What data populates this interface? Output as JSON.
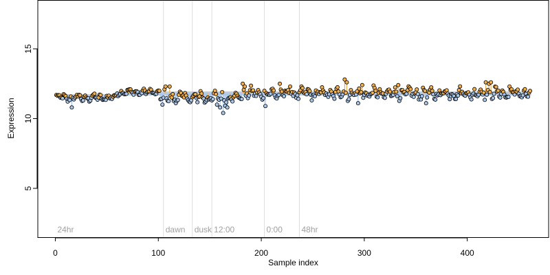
{
  "chart_data": {
    "type": "scatter",
    "xlabel": "Sample index",
    "ylabel": "Expression",
    "xlim": [
      -17,
      479
    ],
    "ylim": [
      1.5,
      18.5
    ],
    "x_ticks": [
      0,
      100,
      200,
      300,
      400
    ],
    "y_ticks": [
      5,
      10,
      15
    ],
    "grid": false,
    "phase_markers": [
      {
        "label": "24hr",
        "x": 0,
        "line": false
      },
      {
        "label": "dawn",
        "x": 105,
        "line": true
      },
      {
        "label": "dusk",
        "x": 133,
        "line": true
      },
      {
        "label": "12:00",
        "x": 152,
        "line": true
      },
      {
        "label": "0:00",
        "x": 203,
        "line": true
      },
      {
        "label": "48hr",
        "x": 237,
        "line": true
      }
    ],
    "baseline": {
      "x_start": 1,
      "x_end": 462,
      "levels": [
        {
          "x_start": 1,
          "x_end": 60,
          "y": 11.6
        },
        {
          "x_start": 60,
          "x_end": 462,
          "y": 11.8
        }
      ]
    },
    "segments": [
      {
        "x_start": 1,
        "x_end": 60,
        "y_center": 11.5,
        "y_amplitude": 0.3
      },
      {
        "x_start": 60,
        "x_end": 102,
        "y_center": 11.9,
        "y_amplitude": 0.25
      },
      {
        "x_start": 102,
        "x_end": 180,
        "y_center": 11.5,
        "y_amplitude": 0.5
      },
      {
        "x_start": 180,
        "x_end": 462,
        "y_center": 11.8,
        "y_amplitude": 0.45
      }
    ],
    "series": [
      {
        "name": "",
        "color": "#a9c6e8"
      },
      {
        "name": "",
        "color": "#f0b050"
      }
    ],
    "highlight_points": [
      {
        "x": 16,
        "y": 10.8,
        "series": 0
      },
      {
        "x": 104,
        "y": 11.0,
        "series": 0
      },
      {
        "x": 107,
        "y": 12.3,
        "series": 1
      },
      {
        "x": 111,
        "y": 12.3,
        "series": 1
      },
      {
        "x": 157,
        "y": 11.0,
        "series": 0
      },
      {
        "x": 160,
        "y": 10.8,
        "series": 0
      },
      {
        "x": 163,
        "y": 10.4,
        "series": 0
      },
      {
        "x": 167,
        "y": 10.8,
        "series": 0
      },
      {
        "x": 182,
        "y": 12.5,
        "series": 1
      },
      {
        "x": 184,
        "y": 12.3,
        "series": 1
      },
      {
        "x": 204,
        "y": 10.9,
        "series": 0
      },
      {
        "x": 218,
        "y": 12.5,
        "series": 1
      },
      {
        "x": 228,
        "y": 12.3,
        "series": 1
      },
      {
        "x": 281,
        "y": 12.8,
        "series": 1
      },
      {
        "x": 283,
        "y": 12.6,
        "series": 1
      },
      {
        "x": 294,
        "y": 11.1,
        "series": 0
      },
      {
        "x": 298,
        "y": 12.4,
        "series": 1
      },
      {
        "x": 333,
        "y": 12.4,
        "series": 1
      },
      {
        "x": 360,
        "y": 11.1,
        "series": 0
      },
      {
        "x": 418,
        "y": 12.6,
        "series": 1
      },
      {
        "x": 421,
        "y": 12.5,
        "series": 1
      },
      {
        "x": 423,
        "y": 12.6,
        "series": 1
      },
      {
        "x": 441,
        "y": 12.3,
        "series": 1
      }
    ]
  }
}
